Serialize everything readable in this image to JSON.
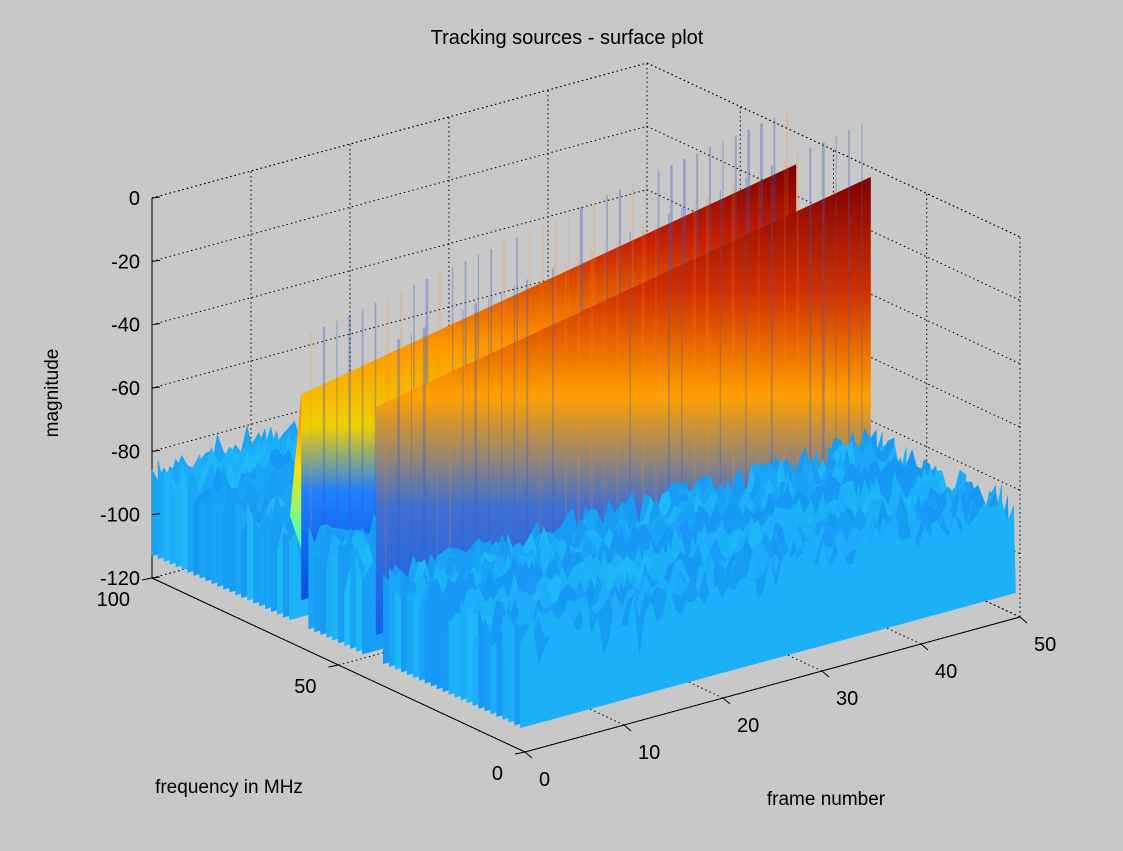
{
  "chart_data": {
    "type": "surface",
    "title": "Tracking sources - surface plot",
    "xlabel": "frame number",
    "ylabel": "frequency in MHz",
    "zlabel": "magnitude",
    "xlim": [
      0,
      50
    ],
    "ylim": [
      0,
      100
    ],
    "zlim": [
      -120,
      0
    ],
    "xticks": [
      "0",
      "10",
      "20",
      "30",
      "40",
      "50"
    ],
    "yticks": [
      "0",
      "50",
      "100"
    ],
    "zticks": [
      "0",
      "-20",
      "-40",
      "-60",
      "-80",
      "-100",
      "-120"
    ],
    "grid": true,
    "colormap": "jet",
    "noise_floor": [
      -105,
      -80
    ],
    "sources": [
      {
        "frequency_mhz": 40,
        "frame_start": 0,
        "frame_end": 50,
        "magnitude_start": -33,
        "magnitude_end": -3
      },
      {
        "frequency_mhz": 60,
        "frame_start": 0,
        "frame_end": 50,
        "magnitude_start": -40,
        "magnitude_end": -10
      }
    ]
  }
}
